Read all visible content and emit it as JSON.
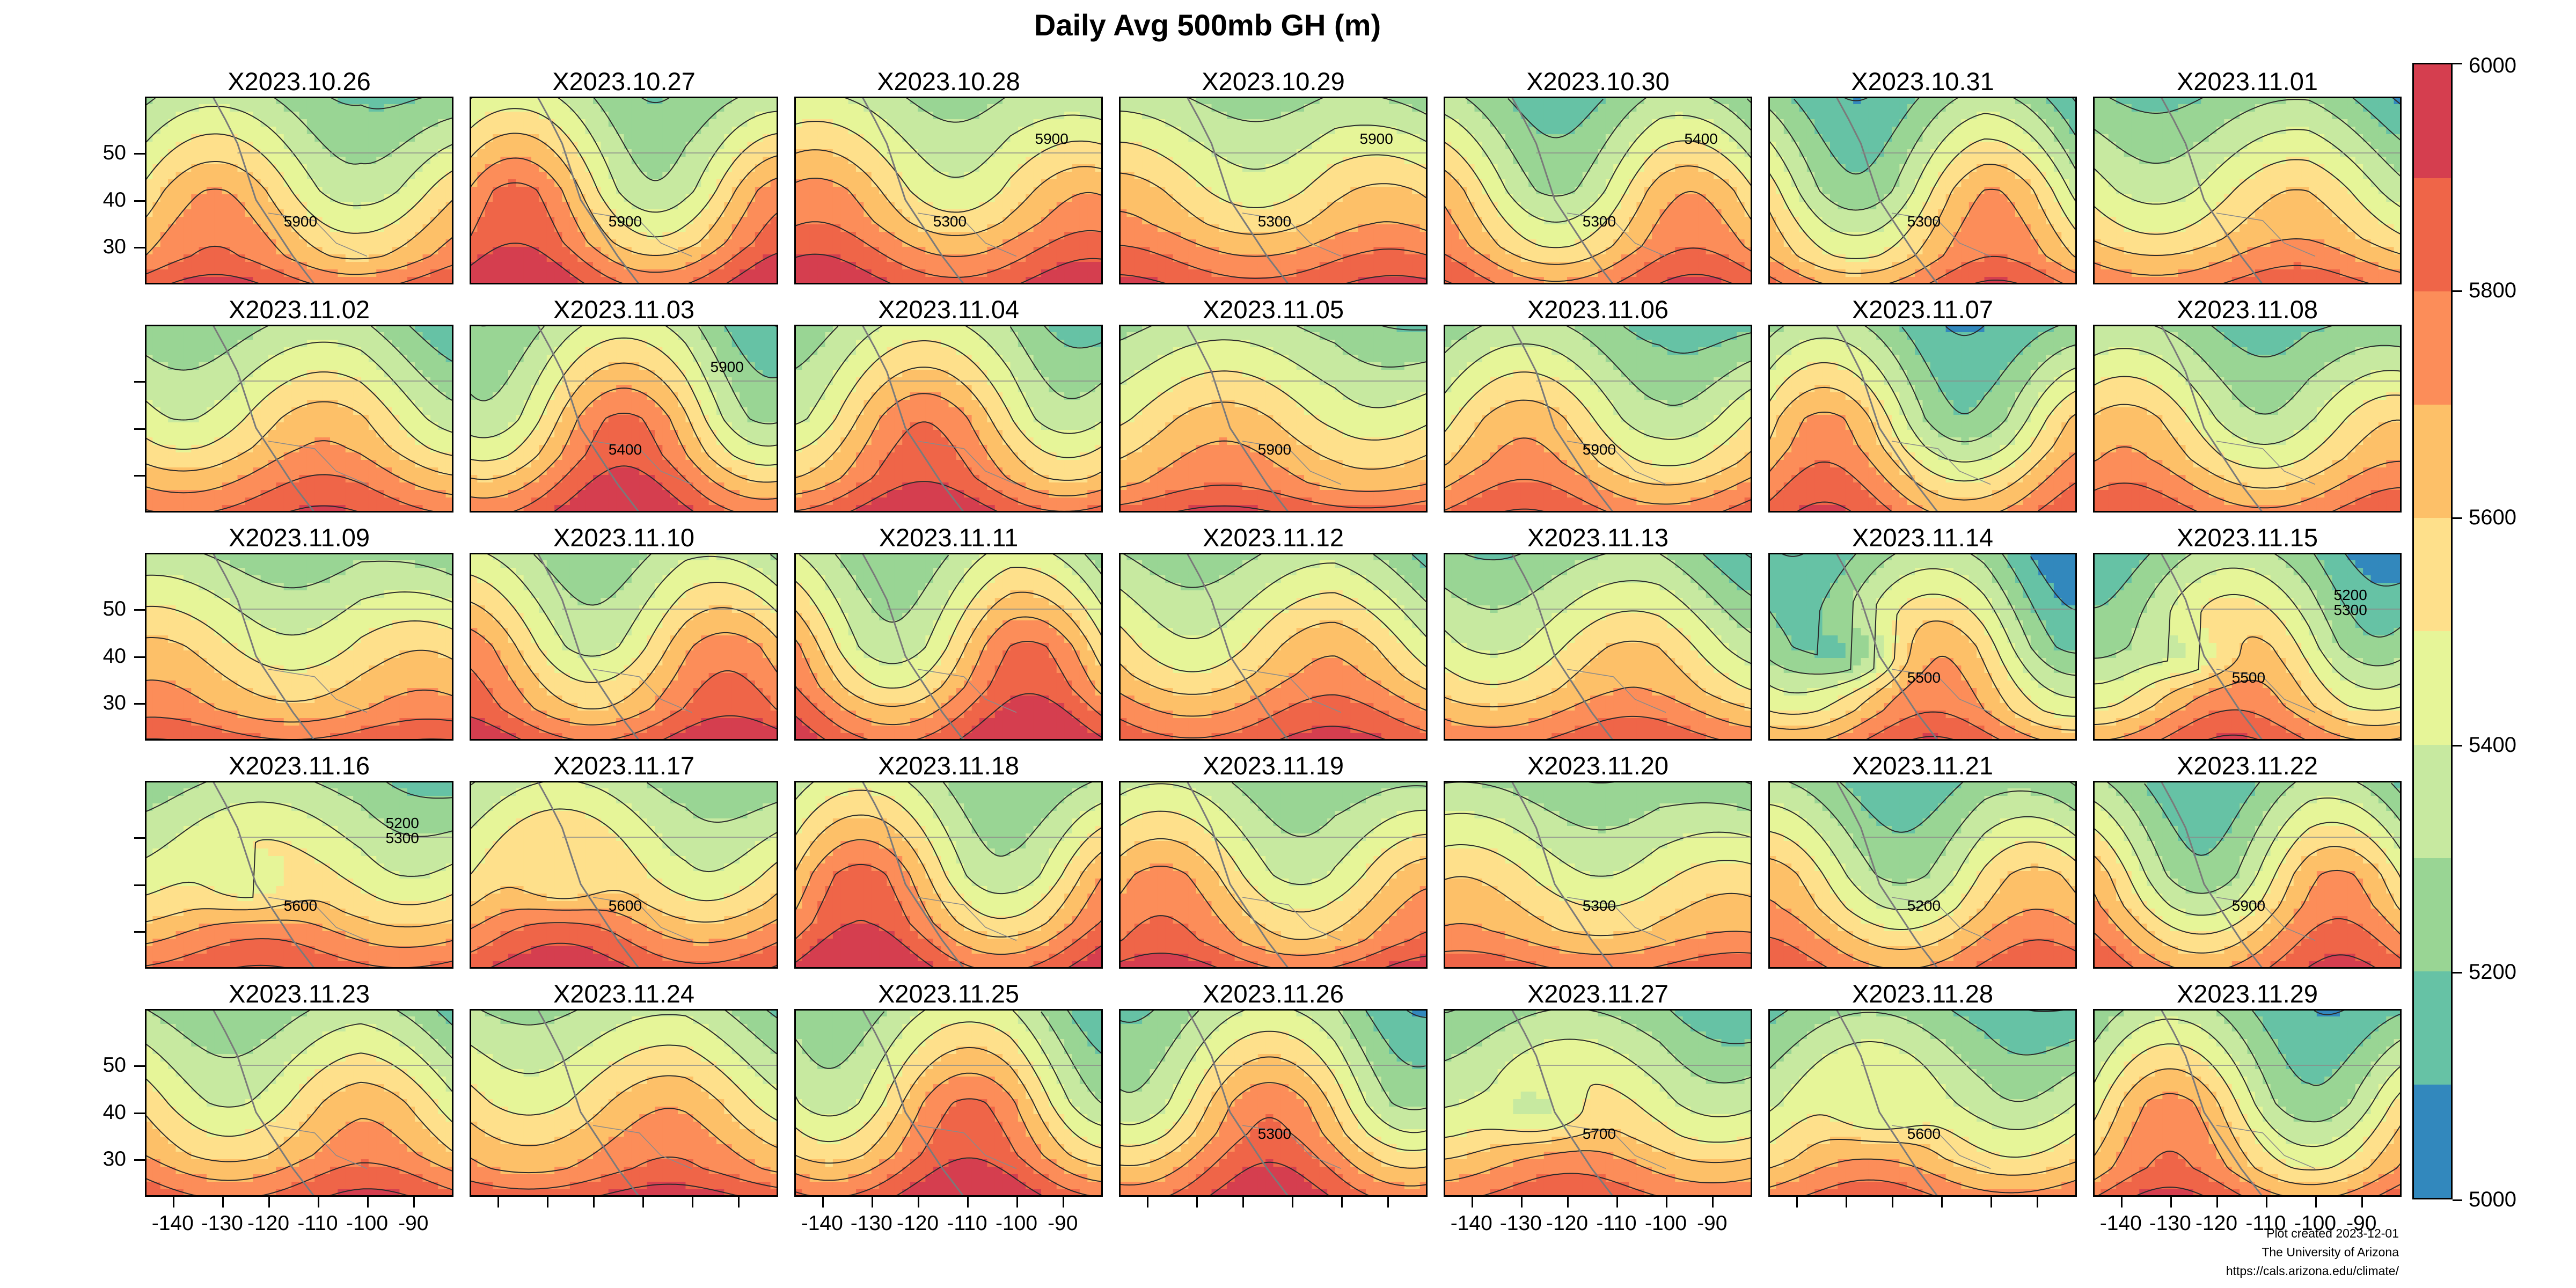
{
  "title": "Daily Avg 500mb GH (m)",
  "panels": [
    "X2023.10.26",
    "X2023.10.27",
    "X2023.10.28",
    "X2023.10.29",
    "X2023.10.30",
    "X2023.10.31",
    "X2023.11.01",
    "X2023.11.02",
    "X2023.11.03",
    "X2023.11.04",
    "X2023.11.05",
    "X2023.11.06",
    "X2023.11.07",
    "X2023.11.08",
    "X2023.11.09",
    "X2023.11.10",
    "X2023.11.11",
    "X2023.11.12",
    "X2023.11.13",
    "X2023.11.14",
    "X2023.11.15",
    "X2023.11.16",
    "X2023.11.17",
    "X2023.11.18",
    "X2023.11.19",
    "X2023.11.20",
    "X2023.11.21",
    "X2023.11.22",
    "X2023.11.23",
    "X2023.11.24",
    "X2023.11.25",
    "X2023.11.26",
    "X2023.11.27",
    "X2023.11.28",
    "X2023.11.29"
  ],
  "lat_ticks": [
    "50",
    "40",
    "30"
  ],
  "lon_ticks": [
    "-140",
    "-130",
    "-120",
    "-110",
    "-100",
    "-90"
  ],
  "colorbar": {
    "labels": [
      "6000",
      "5800",
      "5600",
      "5400",
      "5200",
      "5000"
    ],
    "range": [
      5000,
      6000
    ],
    "colors": [
      "#3288bd",
      "#66c2a5",
      "#99d594",
      "#c7e9a0",
      "#e6f598",
      "#fee08b",
      "#fdc068",
      "#fc8d59",
      "#ef6548",
      "#d53e4f"
    ]
  },
  "contour_labels": [
    {
      "panel": 0,
      "text": "5900"
    },
    {
      "panel": 1,
      "text": "5900"
    },
    {
      "panel": 2,
      "text": "5300"
    },
    {
      "panel": 2,
      "text": "5900"
    },
    {
      "panel": 3,
      "text": "5300"
    },
    {
      "panel": 3,
      "text": "5900"
    },
    {
      "panel": 4,
      "text": "5300"
    },
    {
      "panel": 4,
      "text": "5400"
    },
    {
      "panel": 5,
      "text": "5300"
    },
    {
      "panel": 8,
      "text": "5400"
    },
    {
      "panel": 8,
      "text": "5900"
    },
    {
      "panel": 10,
      "text": "5900"
    },
    {
      "panel": 11,
      "text": "5900"
    },
    {
      "panel": 19,
      "text": "5500"
    },
    {
      "panel": 20,
      "text": "5500"
    },
    {
      "panel": 20,
      "text": "5200"
    },
    {
      "panel": 20,
      "text": "5300"
    },
    {
      "panel": 21,
      "text": "5600"
    },
    {
      "panel": 21,
      "text": "5200"
    },
    {
      "panel": 21,
      "text": "5300"
    },
    {
      "panel": 22,
      "text": "5600"
    },
    {
      "panel": 25,
      "text": "5300"
    },
    {
      "panel": 26,
      "text": "5200"
    },
    {
      "panel": 27,
      "text": "5900"
    },
    {
      "panel": 31,
      "text": "5300"
    },
    {
      "panel": 32,
      "text": "5700"
    },
    {
      "panel": 33,
      "text": "5600"
    }
  ],
  "credits": [
    "Plot created 2023-12-01",
    "The University of Arizona",
    "https://cals.arizona.edu/climate/"
  ]
}
